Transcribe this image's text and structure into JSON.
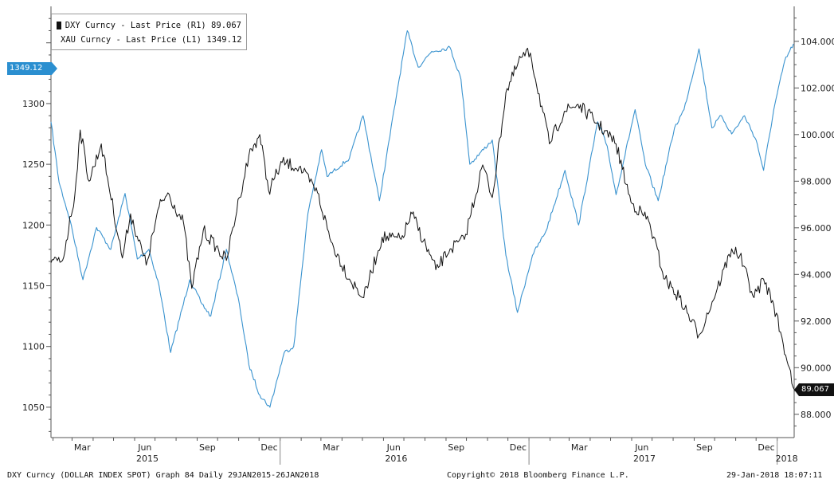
{
  "colors": {
    "dxy": "#111111",
    "xau": "#3a93cf",
    "axis": "#555555",
    "tag_left": "#2b8fd0",
    "tag_right": "#111111"
  },
  "legend": [
    {
      "label": "DXY Curncy - Last Price (R1) 89.067",
      "color": "#111111"
    },
    {
      "label": "XAU Curncy - Last Price (L1) 1349.12",
      "color": "#3a93cf"
    }
  ],
  "tags": {
    "left_value": "1349.12",
    "right_value": "89.067"
  },
  "footer": {
    "left": "DXY Curncy (DOLLAR INDEX SPOT) Graph 84  Daily 29JAN2015-26JAN2018",
    "center": "Copyright© 2018 Bloomberg Finance L.P.",
    "right": "29-Jan-2018 18:07:11"
  },
  "chart_data": {
    "type": "line",
    "x_range": [
      "2015-01-29",
      "2018-01-26"
    ],
    "x_month_ticks": [
      {
        "date": "2015-03",
        "label": "Mar"
      },
      {
        "date": "2015-06",
        "label": "Jun"
      },
      {
        "date": "2015-09",
        "label": "Sep"
      },
      {
        "date": "2015-12",
        "label": "Dec"
      },
      {
        "date": "2016-03",
        "label": "Mar"
      },
      {
        "date": "2016-06",
        "label": "Jun"
      },
      {
        "date": "2016-09",
        "label": "Sep"
      },
      {
        "date": "2016-12",
        "label": "Dec"
      },
      {
        "date": "2017-03",
        "label": "Mar"
      },
      {
        "date": "2017-06",
        "label": "Jun"
      },
      {
        "date": "2017-09",
        "label": "Sep"
      },
      {
        "date": "2017-12",
        "label": "Dec"
      }
    ],
    "x_year_labels": [
      {
        "date": "2015-06",
        "label": "2015"
      },
      {
        "date": "2016-06",
        "label": "2016"
      },
      {
        "date": "2017-06",
        "label": "2017"
      },
      {
        "date": "2018-01",
        "label": "2018"
      }
    ],
    "left_axis": {
      "ylim": [
        1025,
        1380
      ],
      "ticks": [
        1050,
        1100,
        1150,
        1200,
        1250,
        1300
      ],
      "tick_labels": [
        "1050",
        "1100",
        "1150",
        "1200",
        "1250",
        "1300"
      ]
    },
    "right_axis": {
      "ylim": [
        87,
        105.5
      ],
      "ticks": [
        88,
        90,
        92,
        94,
        96,
        98,
        100,
        102,
        104
      ],
      "tick_labels": [
        "88.000",
        "90.000",
        "92.000",
        "94.000",
        "96.000",
        "98.000",
        "100.000",
        "102.000",
        "104.000"
      ]
    },
    "series": [
      {
        "name": "DXY Curncy - Last Price (R1) 89.067",
        "axis": "right",
        "x": [
          "2015-01-29",
          "2015-02-15",
          "2015-03-05",
          "2015-03-13",
          "2015-03-26",
          "2015-04-13",
          "2015-05-14",
          "2015-05-26",
          "2015-06-18",
          "2015-07-07",
          "2015-07-20",
          "2015-08-12",
          "2015-08-24",
          "2015-09-10",
          "2015-10-14",
          "2015-11-02",
          "2015-11-16",
          "2015-12-02",
          "2015-12-15",
          "2016-01-04",
          "2016-01-29",
          "2016-02-25",
          "2016-03-16",
          "2016-04-12",
          "2016-05-03",
          "2016-05-30",
          "2016-06-27",
          "2016-07-13",
          "2016-08-17",
          "2016-09-07",
          "2016-09-28",
          "2016-10-25",
          "2016-11-08",
          "2016-11-28",
          "2016-12-20",
          "2017-01-03",
          "2017-01-31",
          "2017-02-22",
          "2017-03-14",
          "2017-04-11",
          "2017-05-09",
          "2017-05-31",
          "2017-06-26",
          "2017-07-20",
          "2017-08-10",
          "2017-09-08",
          "2017-10-05",
          "2017-10-26",
          "2017-11-07",
          "2017-11-28",
          "2017-12-12",
          "2017-12-27",
          "2018-01-10",
          "2018-01-19",
          "2018-01-26"
        ],
        "values": [
          94.5,
          94.6,
          97.4,
          100.2,
          98.0,
          99.6,
          94.7,
          96.6,
          94.4,
          96.9,
          97.5,
          96.2,
          93.4,
          95.9,
          94.6,
          97.3,
          99.1,
          100.0,
          97.6,
          98.8,
          98.6,
          97.5,
          95.4,
          93.8,
          93.0,
          95.6,
          95.5,
          96.6,
          94.2,
          95.1,
          95.5,
          98.7,
          97.3,
          101.8,
          103.3,
          103.5,
          99.6,
          101.0,
          101.3,
          100.5,
          99.6,
          97.1,
          96.3,
          93.8,
          93.0,
          91.4,
          93.4,
          95.1,
          94.8,
          93.0,
          93.8,
          92.7,
          91.0,
          90.0,
          89.067
        ]
      },
      {
        "name": "XAU Curncy - Last Price (L1) 1349.12",
        "axis": "left",
        "x": [
          "2015-01-29",
          "2015-02-10",
          "2015-02-26",
          "2015-03-17",
          "2015-04-06",
          "2015-04-27",
          "2015-05-18",
          "2015-06-05",
          "2015-06-22",
          "2015-07-07",
          "2015-07-24",
          "2015-08-21",
          "2015-09-08",
          "2015-09-21",
          "2015-10-14",
          "2015-11-02",
          "2015-11-16",
          "2015-12-02",
          "2015-12-17",
          "2016-01-07",
          "2016-01-21",
          "2016-02-11",
          "2016-03-02",
          "2016-03-10",
          "2016-04-12",
          "2016-05-02",
          "2016-05-26",
          "2016-06-24",
          "2016-07-06",
          "2016-07-22",
          "2016-08-11",
          "2016-09-07",
          "2016-09-23",
          "2016-10-06",
          "2016-11-08",
          "2016-11-28",
          "2016-12-15",
          "2017-01-06",
          "2017-01-26",
          "2017-02-23",
          "2017-03-15",
          "2017-04-12",
          "2017-04-26",
          "2017-05-09",
          "2017-06-06",
          "2017-06-21",
          "2017-07-10",
          "2017-08-03",
          "2017-08-17",
          "2017-09-08",
          "2017-09-27",
          "2017-10-11",
          "2017-10-26",
          "2017-11-14",
          "2017-12-01",
          "2017-12-12",
          "2017-12-27",
          "2018-01-12",
          "2018-01-25"
        ],
        "values": [
          1285,
          1235,
          1204,
          1155,
          1198,
          1180,
          1226,
          1172,
          1180,
          1150,
          1095,
          1155,
          1135,
          1125,
          1180,
          1135,
          1085,
          1060,
          1050,
          1095,
          1100,
          1210,
          1262,
          1240,
          1255,
          1290,
          1220,
          1320,
          1360,
          1330,
          1343,
          1346,
          1320,
          1250,
          1270,
          1175,
          1128,
          1175,
          1195,
          1245,
          1200,
          1285,
          1265,
          1225,
          1295,
          1250,
          1220,
          1280,
          1295,
          1345,
          1280,
          1290,
          1275,
          1290,
          1270,
          1245,
          1295,
          1335,
          1349.12
        ]
      }
    ]
  }
}
